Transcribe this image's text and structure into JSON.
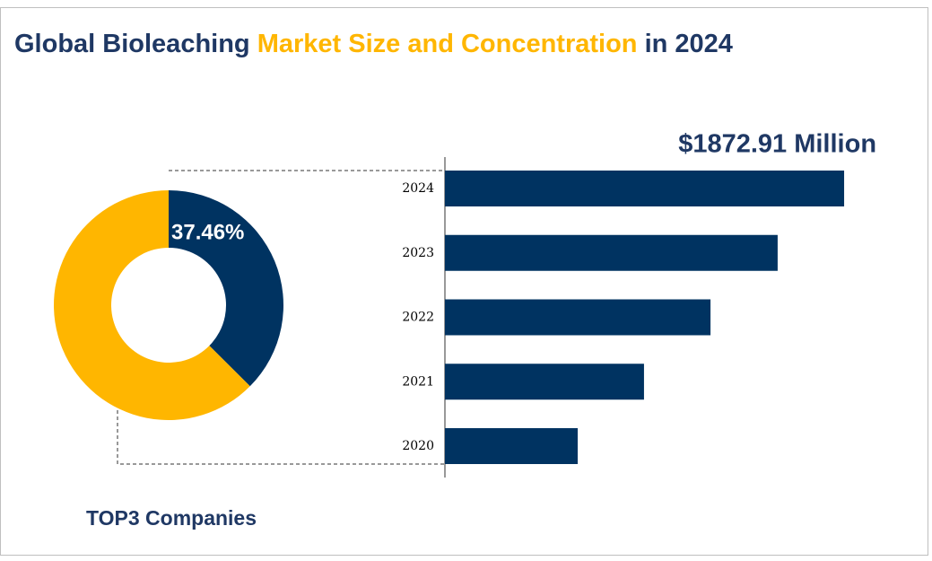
{
  "title_parts": [
    "Global Bioleaching",
    "Market Size and Concentration",
    "in 2024"
  ],
  "chart_data": [
    {
      "type": "pie",
      "donut": true,
      "label": "TOP3 Companies",
      "values": [
        37.46,
        62.54
      ],
      "value_labels": [
        "37.46%",
        null
      ],
      "colors": [
        "#003361",
        "#ffb600"
      ]
    },
    {
      "type": "bar",
      "orientation": "horizontal",
      "categories": [
        "2024",
        "2023",
        "2022",
        "2021",
        "2020"
      ],
      "values": [
        1872.91,
        1561,
        1246,
        934,
        623
      ],
      "value_labels": [
        "$1872.91 Million",
        null,
        null,
        null,
        null
      ],
      "color": "#003361",
      "xlim": [
        0,
        2100
      ]
    }
  ]
}
